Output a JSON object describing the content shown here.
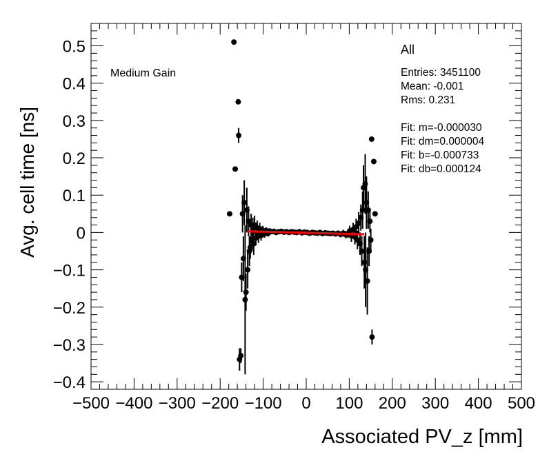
{
  "chart_data": {
    "type": "scatter",
    "title": "All",
    "annotation": "Medium Gain",
    "xlabel": "Associated PV_z [mm]",
    "ylabel": "Avg. cell time [ns]",
    "xlim": [
      -500,
      500
    ],
    "ylim": [
      -0.42,
      0.56
    ],
    "xticks": [
      -500,
      -400,
      -300,
      -200,
      -100,
      0,
      100,
      200,
      300,
      400,
      500
    ],
    "yticks": [
      -0.4,
      -0.3,
      -0.2,
      -0.1,
      0,
      0.1,
      0.2,
      0.3,
      0.4,
      0.5
    ],
    "xtick_labels": [
      "−500",
      "−400",
      "−300",
      "−200",
      "−100",
      "0",
      "100",
      "200",
      "300",
      "400",
      "500"
    ],
    "ytick_labels": [
      "−0.4",
      "−0.3",
      "−0.2",
      "−0.1",
      "0",
      "0.1",
      "0.2",
      "0.3",
      "0.4",
      "0.5"
    ],
    "stats": {
      "entries": "Entries: 3451100",
      "mean": "Mean: -0.001",
      "rms": "Rms: 0.231",
      "fit_m": "Fit: m=-0.000030",
      "fit_dm": "Fit: dm=0.000004",
      "fit_b": "Fit: b=-0.000733",
      "fit_db": "Fit: db=0.000124"
    },
    "fit": {
      "slope": -3e-05,
      "intercept": -0.000733,
      "x_range": [
        -135,
        135
      ],
      "color": "#ff0000"
    },
    "points": [
      {
        "x": -178,
        "y": 0.05,
        "err": 0.0
      },
      {
        "x": -168,
        "y": 0.51,
        "err": 0.0
      },
      {
        "x": -165,
        "y": 0.17,
        "err": 0.0
      },
      {
        "x": -158,
        "y": 0.35,
        "err": 0.0
      },
      {
        "x": -157,
        "y": 0.26,
        "err": 0.02
      },
      {
        "x": -155,
        "y": -0.34,
        "err": 0.03
      },
      {
        "x": -152,
        "y": -0.33,
        "err": 0.02
      },
      {
        "x": -150,
        "y": -0.12,
        "err": 0.04
      },
      {
        "x": -148,
        "y": 0.05,
        "err": 0.05
      },
      {
        "x": -146,
        "y": -0.07,
        "err": 0.06
      },
      {
        "x": -144,
        "y": 0.08,
        "err": 0.06
      },
      {
        "x": -142,
        "y": -0.18,
        "err": 0.2
      },
      {
        "x": -140,
        "y": -0.16,
        "err": 0.05
      },
      {
        "x": -138,
        "y": 0.06,
        "err": 0.06
      },
      {
        "x": -136,
        "y": -0.1,
        "err": 0.05
      },
      {
        "x": -134,
        "y": 0.03,
        "err": 0.04
      },
      {
        "x": -132,
        "y": -0.05,
        "err": 0.04
      },
      {
        "x": -130,
        "y": -0.04,
        "err": 0.03
      },
      {
        "x": -128,
        "y": 0.02,
        "err": 0.03
      },
      {
        "x": -126,
        "y": -0.02,
        "err": 0.03
      },
      {
        "x": -124,
        "y": 0.01,
        "err": 0.03
      },
      {
        "x": -122,
        "y": -0.03,
        "err": 0.03
      },
      {
        "x": -120,
        "y": 0.02,
        "err": 0.025
      },
      {
        "x": -117,
        "y": -0.015,
        "err": 0.02
      },
      {
        "x": -114,
        "y": 0.012,
        "err": 0.02
      },
      {
        "x": -111,
        "y": -0.01,
        "err": 0.018
      },
      {
        "x": -108,
        "y": 0.01,
        "err": 0.016
      },
      {
        "x": -105,
        "y": -0.008,
        "err": 0.014
      },
      {
        "x": -101,
        "y": 0.006,
        "err": 0.012
      },
      {
        "x": -97,
        "y": -0.004,
        "err": 0.01
      },
      {
        "x": -93,
        "y": 0.005,
        "err": 0.009
      },
      {
        "x": -89,
        "y": -0.003,
        "err": 0.008
      },
      {
        "x": -85,
        "y": 0.004,
        "err": 0.007
      },
      {
        "x": -80,
        "y": 0.002,
        "err": 0.006
      },
      {
        "x": -75,
        "y": 0.003,
        "err": 0.006
      },
      {
        "x": -70,
        "y": 0.0,
        "err": 0.005
      },
      {
        "x": -64,
        "y": 0.002,
        "err": 0.005
      },
      {
        "x": -58,
        "y": 0.003,
        "err": 0.005
      },
      {
        "x": -52,
        "y": 0.001,
        "err": 0.005
      },
      {
        "x": -46,
        "y": 0.002,
        "err": 0.005
      },
      {
        "x": -40,
        "y": 0.0,
        "err": 0.005
      },
      {
        "x": -34,
        "y": 0.002,
        "err": 0.005
      },
      {
        "x": -28,
        "y": 0.001,
        "err": 0.005
      },
      {
        "x": -22,
        "y": 0.0,
        "err": 0.005
      },
      {
        "x": -16,
        "y": 0.002,
        "err": 0.005
      },
      {
        "x": -10,
        "y": -0.001,
        "err": 0.005
      },
      {
        "x": -4,
        "y": 0.001,
        "err": 0.005
      },
      {
        "x": 2,
        "y": 0.0,
        "err": 0.005
      },
      {
        "x": 8,
        "y": -0.002,
        "err": 0.005
      },
      {
        "x": 14,
        "y": 0.0,
        "err": 0.005
      },
      {
        "x": 20,
        "y": -0.001,
        "err": 0.005
      },
      {
        "x": 26,
        "y": -0.002,
        "err": 0.005
      },
      {
        "x": 32,
        "y": 0.0,
        "err": 0.005
      },
      {
        "x": 38,
        "y": -0.003,
        "err": 0.005
      },
      {
        "x": 44,
        "y": -0.001,
        "err": 0.005
      },
      {
        "x": 50,
        "y": -0.002,
        "err": 0.005
      },
      {
        "x": 56,
        "y": -0.003,
        "err": 0.005
      },
      {
        "x": 62,
        "y": -0.002,
        "err": 0.006
      },
      {
        "x": 68,
        "y": -0.004,
        "err": 0.006
      },
      {
        "x": 74,
        "y": -0.002,
        "err": 0.007
      },
      {
        "x": 80,
        "y": -0.005,
        "err": 0.008
      },
      {
        "x": 86,
        "y": -0.002,
        "err": 0.009
      },
      {
        "x": 92,
        "y": -0.006,
        "err": 0.01
      },
      {
        "x": 97,
        "y": -0.003,
        "err": 0.012
      },
      {
        "x": 101,
        "y": 0.004,
        "err": 0.014
      },
      {
        "x": 105,
        "y": -0.009,
        "err": 0.016
      },
      {
        "x": 109,
        "y": 0.008,
        "err": 0.018
      },
      {
        "x": 113,
        "y": -0.012,
        "err": 0.02
      },
      {
        "x": 116,
        "y": 0.015,
        "err": 0.022
      },
      {
        "x": 119,
        "y": -0.02,
        "err": 0.025
      },
      {
        "x": 122,
        "y": 0.025,
        "err": 0.03
      },
      {
        "x": 125,
        "y": -0.03,
        "err": 0.03
      },
      {
        "x": 127,
        "y": 0.04,
        "err": 0.035
      },
      {
        "x": 129,
        "y": -0.05,
        "err": 0.04
      },
      {
        "x": 131,
        "y": 0.06,
        "err": 0.05
      },
      {
        "x": 133,
        "y": 0.12,
        "err": 0.06
      },
      {
        "x": 135,
        "y": -0.08,
        "err": 0.07
      },
      {
        "x": 137,
        "y": 0.13,
        "err": 0.08
      },
      {
        "x": 138,
        "y": -0.1,
        "err": 0.1
      },
      {
        "x": 140,
        "y": 0.08,
        "err": 0.07
      },
      {
        "x": 142,
        "y": -0.13,
        "err": 0.09
      },
      {
        "x": 144,
        "y": 0.06,
        "err": 0.05
      },
      {
        "x": 146,
        "y": -0.05,
        "err": 0.04
      },
      {
        "x": 148,
        "y": 0.03,
        "err": 0.03
      },
      {
        "x": 150,
        "y": -0.02,
        "err": 0.03
      },
      {
        "x": 152,
        "y": 0.25,
        "err": 0.0
      },
      {
        "x": 153,
        "y": -0.28,
        "err": 0.02
      },
      {
        "x": 157,
        "y": 0.19,
        "err": 0.0
      },
      {
        "x": 160,
        "y": 0.05,
        "err": 0.0
      }
    ]
  }
}
